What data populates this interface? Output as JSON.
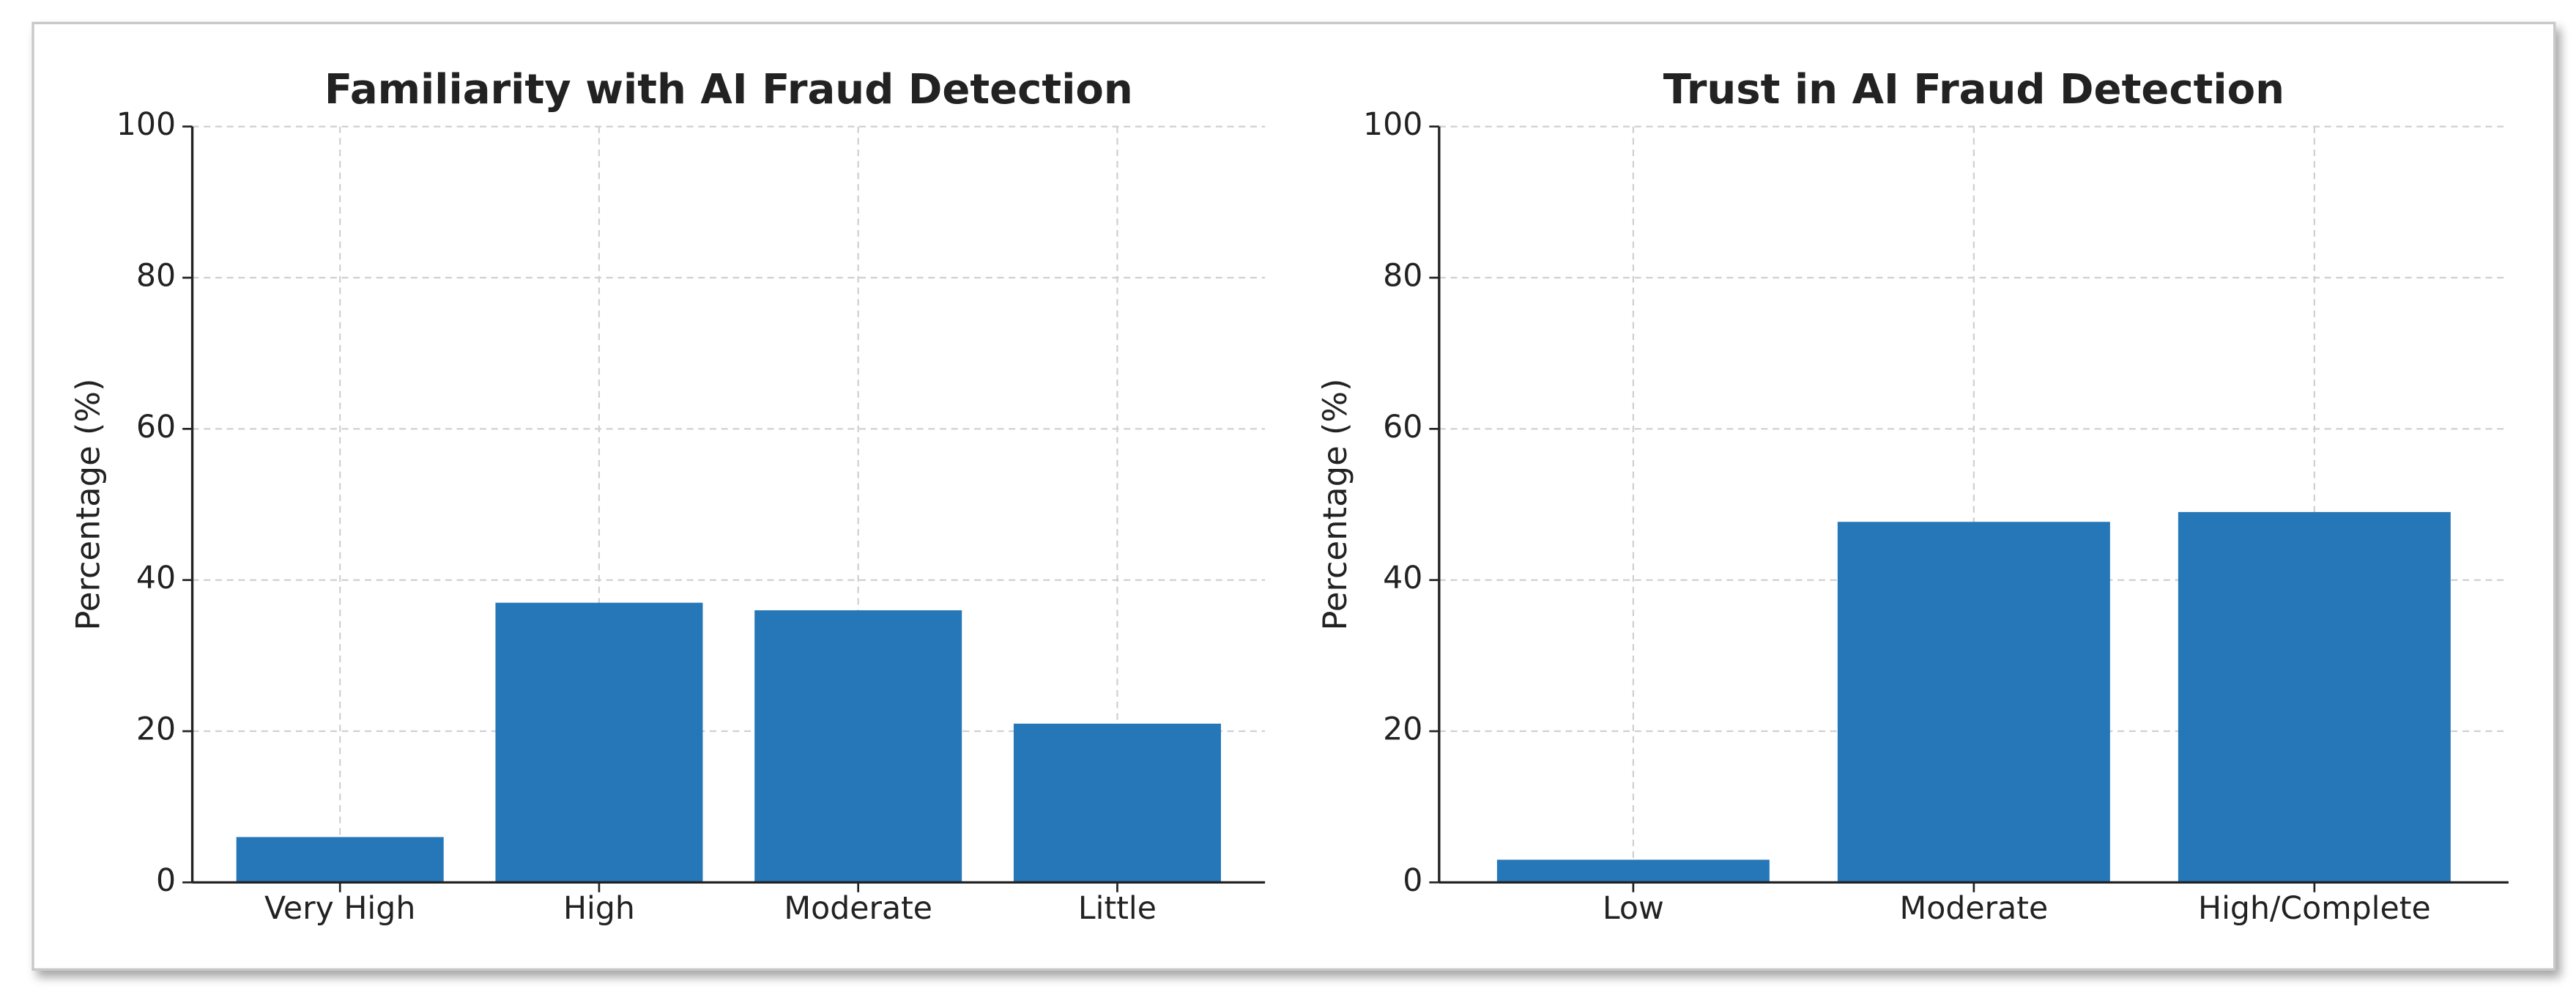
{
  "chart_data": [
    {
      "type": "bar",
      "title": "Familiarity with AI Fraud Detection",
      "ylabel": "Percentage (%)",
      "categories": [
        "Very High",
        "High",
        "Moderate",
        "Little"
      ],
      "values": [
        6,
        37,
        36,
        21
      ],
      "color": "#2677b8",
      "ylim": [
        0,
        100
      ],
      "yticks": [
        0,
        20,
        40,
        60,
        80,
        100
      ],
      "grid": true
    },
    {
      "type": "bar",
      "title": "Trust in AI Fraud Detection",
      "ylabel": "Percentage (%)",
      "categories": [
        "Low",
        "Moderate",
        "High/Complete"
      ],
      "values": [
        3,
        47.7,
        49
      ],
      "color": "#2677b8",
      "ylim": [
        0,
        100
      ],
      "yticks": [
        0,
        20,
        40,
        60,
        80,
        100
      ],
      "grid": true
    }
  ]
}
